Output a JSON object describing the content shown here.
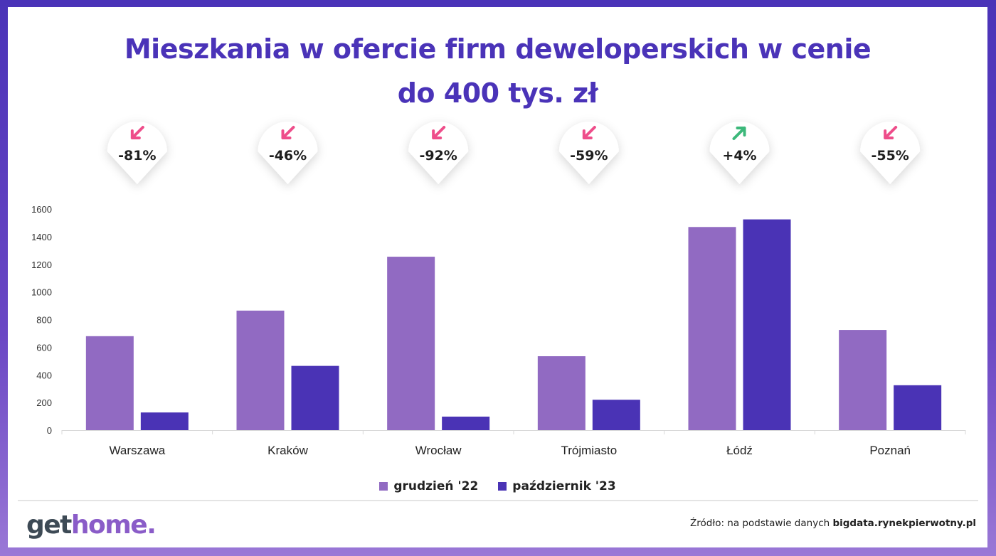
{
  "title": {
    "line1": "Mieszkania w ofercie firm deweloperskich w cenie",
    "line2": "do 400 tys. zł"
  },
  "chart_data": {
    "type": "bar",
    "title": "Mieszkania w ofercie firm deweloperskich w cenie do 400 tys. zł",
    "categories": [
      "Warszawa",
      "Kraków",
      "Wrocław",
      "Trójmiasto",
      "Łódź",
      "Poznań"
    ],
    "series": [
      {
        "name": "grudzień '22",
        "color": "#916ac2",
        "values": [
          680,
          865,
          1255,
          535,
          1470,
          725
        ]
      },
      {
        "name": "październik '23",
        "color": "#4a33b5",
        "values": [
          128,
          465,
          98,
          220,
          1525,
          325
        ]
      }
    ],
    "changes": [
      {
        "label": "-81%",
        "direction": "down"
      },
      {
        "label": "-46%",
        "direction": "down"
      },
      {
        "label": "-92%",
        "direction": "down"
      },
      {
        "label": "-59%",
        "direction": "down"
      },
      {
        "label": "+4%",
        "direction": "up"
      },
      {
        "label": "-55%",
        "direction": "down"
      }
    ],
    "arrow_colors": {
      "down": "#ee4d8a",
      "up": "#3cb87a"
    },
    "ylim": [
      0,
      1600
    ],
    "yticks": [
      0,
      200,
      400,
      600,
      800,
      1000,
      1200,
      1400,
      1600
    ],
    "grid": false,
    "legend": "bottom-center"
  },
  "legend": {
    "items": [
      {
        "label": "grudzień '22",
        "color": "#916ac2"
      },
      {
        "label": "październik '23",
        "color": "#4a33b5"
      }
    ]
  },
  "footer": {
    "logo_part1": "get",
    "logo_part2": "home.",
    "source_prefix": "Źródło: na podstawie danych",
    "source_bold": "bigdata.rynekpierwotny.pl"
  }
}
